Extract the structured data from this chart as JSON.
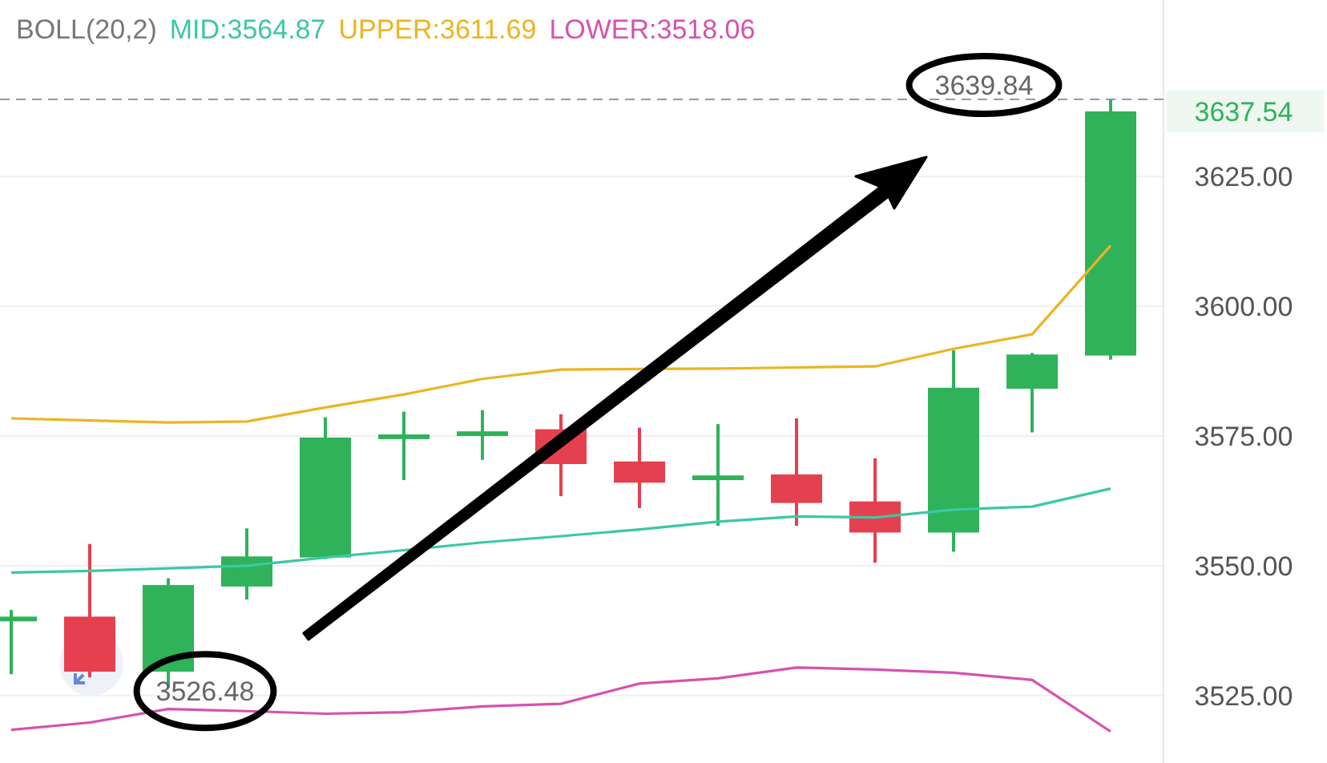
{
  "chart_data": {
    "type": "candlestick",
    "title": "BOLL(20,2)",
    "categories": [
      null,
      null,
      null,
      null,
      null,
      null,
      null,
      null,
      null,
      null,
      null,
      null,
      null,
      null,
      null
    ],
    "ohlc": [
      [
        3539.3,
        3541.5,
        3529.1,
        3540.2
      ],
      [
        3540.2,
        3554.2,
        3528.5,
        3529.6
      ],
      [
        3529.6,
        3547.6,
        3526.48,
        3546.3
      ],
      [
        3546.0,
        3557.2,
        3543.5,
        3551.8
      ],
      [
        3551.6,
        3578.6,
        3551.3,
        3574.7
      ],
      [
        3574.4,
        3579.7,
        3566.5,
        3575.3
      ],
      [
        3575.0,
        3580.0,
        3570.4,
        3575.9
      ],
      [
        3576.3,
        3579.2,
        3563.4,
        3569.6
      ],
      [
        3570.1,
        3576.6,
        3561.1,
        3566.0
      ],
      [
        3566.5,
        3577.3,
        3557.7,
        3567.4
      ],
      [
        3567.6,
        3578.4,
        3557.7,
        3562.1
      ],
      [
        3562.4,
        3570.7,
        3550.6,
        3556.4
      ],
      [
        3556.4,
        3591.5,
        3552.7,
        3584.3
      ],
      [
        3584.1,
        3591.0,
        3575.7,
        3590.7
      ],
      [
        3590.5,
        3639.84,
        3589.7,
        3637.54
      ]
    ],
    "colors": [
      "#2fb25a",
      "#e5404f",
      "#2fb25a",
      "#2fb25a",
      "#2fb25a",
      "#2fb25a",
      "#2fb25a",
      "#e5404f",
      "#e5404f",
      "#2fb25a",
      "#e5404f",
      "#e5404f",
      "#2fb25a",
      "#2fb25a",
      "#2fb25a"
    ],
    "series": [
      {
        "name": "MID:3564.87",
        "type": "line",
        "color": "#3cc7a5",
        "values": [
          3548.7,
          3549.0,
          3549.5,
          3550.0,
          3551.6,
          3553.0,
          3554.5,
          3555.7,
          3557.0,
          3558.5,
          3559.5,
          3559.3,
          3560.8,
          3561.4,
          3564.87
        ]
      },
      {
        "name": "UPPER:3611.69",
        "type": "line",
        "color": "#e9b522",
        "values": [
          3578.4,
          3578.0,
          3577.6,
          3577.8,
          3580.5,
          3583.0,
          3586.0,
          3587.8,
          3587.9,
          3588.0,
          3588.2,
          3588.4,
          3591.8,
          3594.6,
          3611.69
        ]
      },
      {
        "name": "LOWER:3518.06",
        "type": "line",
        "color": "#d552b0",
        "values": [
          3518.4,
          3519.8,
          3522.4,
          3522.0,
          3521.5,
          3521.8,
          3522.9,
          3523.4,
          3527.3,
          3528.3,
          3530.4,
          3530.0,
          3529.4,
          3528.0,
          3518.06
        ]
      }
    ],
    "ylim": [
      3512,
      3659
    ],
    "yticks": [
      {
        "value": 3525,
        "label": "3525.00"
      },
      {
        "value": 3550,
        "label": "3550.00"
      },
      {
        "value": 3575,
        "label": "3575.00"
      },
      {
        "value": 3600,
        "label": "3600.00"
      },
      {
        "value": 3625,
        "label": "3625.00"
      }
    ],
    "grid": "y",
    "legend": "top left",
    "ref_lines": [
      {
        "axis": "y",
        "value": 3639.84,
        "label": "3639.84",
        "color": "#999999",
        "line_style": "dashed"
      }
    ],
    "annotations": [
      "3637.54",
      "3526.48"
    ]
  }
}
